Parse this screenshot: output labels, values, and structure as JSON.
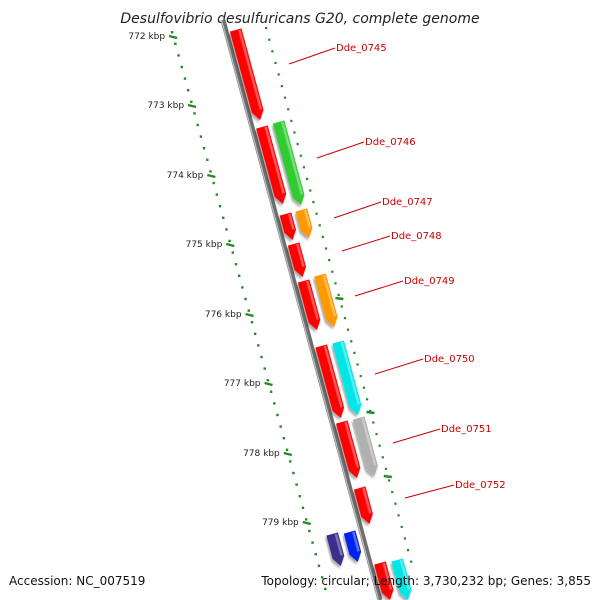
{
  "title": "Desulfovibrio desulfuricans G20, complete genome",
  "footer": {
    "accession": "Accession: NC_007519",
    "summary": "Topology: circular; Length: 3,730,232 bp; Genes: 3,855"
  },
  "colors": {
    "tick_green": "#228b22",
    "backbone": "#8c8c8c",
    "label_red": "#cc0000",
    "gene_red": "#ff0000",
    "gene_green": "#33cc33",
    "gene_orange": "#ff9900",
    "gene_cyan": "#00e6e6",
    "gene_gray": "#b0b0b0",
    "gene_navy": "#3a2f8c",
    "gene_blue": "#0022ee"
  },
  "scale_labels": [
    "772 kbp",
    "773 kbp",
    "774 kbp",
    "775 kbp",
    "776 kbp",
    "777 kbp",
    "778 kbp",
    "779 kbp"
  ],
  "gene_labels": [
    "Dde_0745",
    "Dde_0746",
    "Dde_0747",
    "Dde_0748",
    "Dde_0749",
    "Dde_0750",
    "Dde_0751",
    "Dde_0752"
  ]
}
